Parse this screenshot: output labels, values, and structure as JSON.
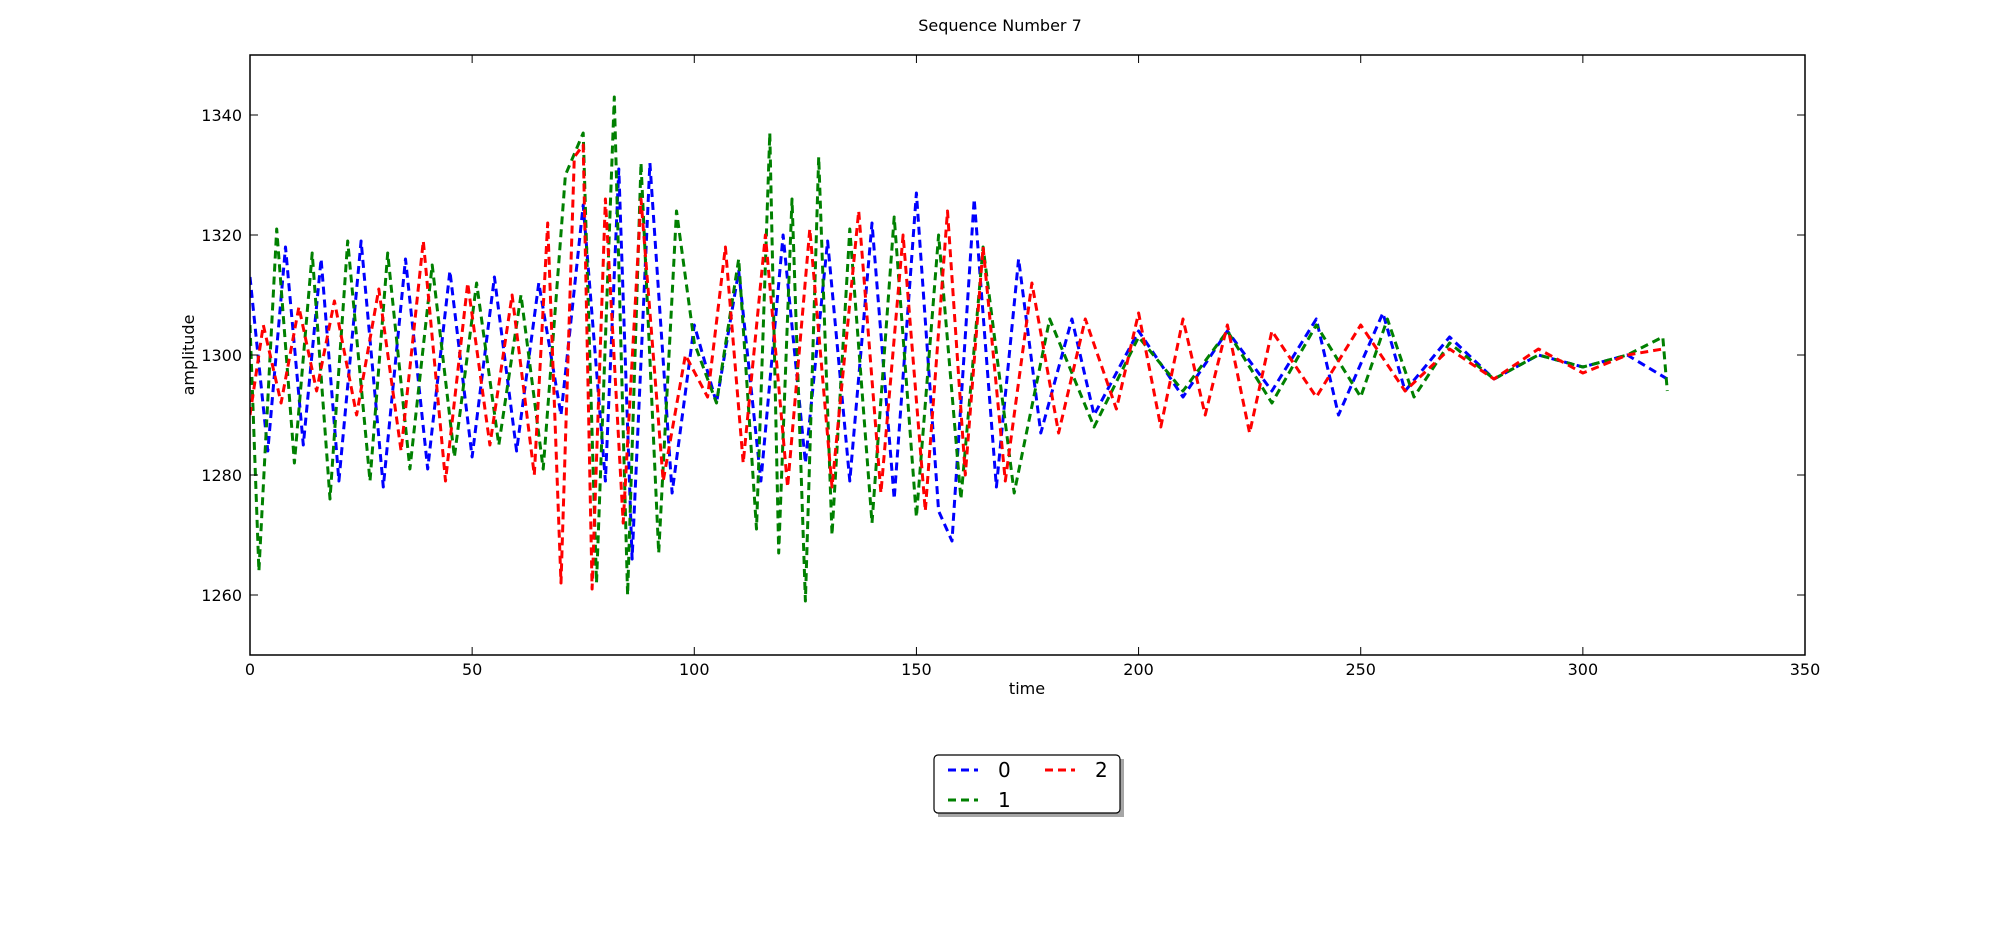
{
  "chart_data": {
    "type": "line",
    "title": "Sequence Number 7",
    "xlabel": "time",
    "ylabel": "amplitude",
    "xlim": [
      0,
      350
    ],
    "ylim": [
      1250,
      1350
    ],
    "xticks": [
      0,
      50,
      100,
      150,
      200,
      250,
      300,
      350
    ],
    "yticks": [
      1260,
      1280,
      1300,
      1320,
      1340
    ],
    "grid": false,
    "line_style": "dashed",
    "legend_placement": "below plot, centered",
    "legend_columns": 2,
    "series": [
      {
        "name": "0",
        "color": "#0000ff",
        "x": [
          0,
          4,
          8,
          12,
          16,
          20,
          25,
          30,
          35,
          40,
          45,
          50,
          55,
          60,
          65,
          70,
          75,
          80,
          83,
          86,
          90,
          95,
          100,
          105,
          110,
          115,
          120,
          125,
          130,
          135,
          140,
          145,
          150,
          155,
          158,
          163,
          168,
          173,
          178,
          185,
          190,
          200,
          210,
          220,
          230,
          240,
          245,
          255,
          260,
          270,
          280,
          290,
          300,
          310,
          319
        ],
        "y": [
          1313,
          1284,
          1318,
          1285,
          1316,
          1279,
          1319,
          1278,
          1316,
          1281,
          1314,
          1283,
          1313,
          1284,
          1312,
          1290,
          1325,
          1279,
          1331,
          1266,
          1332,
          1277,
          1305,
          1292,
          1314,
          1279,
          1320,
          1282,
          1319,
          1279,
          1322,
          1276,
          1327,
          1274,
          1269,
          1326,
          1278,
          1316,
          1287,
          1306,
          1290,
          1304,
          1293,
          1304,
          1294,
          1306,
          1290,
          1307,
          1294,
          1303,
          1296,
          1300,
          1298,
          1300,
          1296
        ]
      },
      {
        "name": "1",
        "color": "#008000",
        "x": [
          0,
          2,
          6,
          10,
          14,
          18,
          22,
          27,
          31,
          36,
          41,
          46,
          51,
          56,
          61,
          66,
          71,
          75,
          78,
          82,
          85,
          88,
          92,
          96,
          100,
          105,
          110,
          114,
          117,
          119,
          122,
          125,
          128,
          131,
          135,
          140,
          145,
          150,
          155,
          160,
          165,
          172,
          180,
          190,
          200,
          210,
          220,
          230,
          240,
          250,
          256,
          262,
          270,
          280,
          290,
          300,
          310,
          318,
          319
        ],
        "y": [
          1305,
          1264,
          1321,
          1282,
          1317,
          1276,
          1319,
          1279,
          1317,
          1281,
          1315,
          1283,
          1312,
          1285,
          1310,
          1281,
          1330,
          1337,
          1262,
          1343,
          1260,
          1332,
          1267,
          1324,
          1302,
          1292,
          1316,
          1271,
          1337,
          1267,
          1326,
          1259,
          1333,
          1270,
          1321,
          1272,
          1323,
          1273,
          1320,
          1276,
          1318,
          1277,
          1306,
          1288,
          1303,
          1294,
          1304,
          1292,
          1305,
          1293,
          1306,
          1293,
          1302,
          1296,
          1300,
          1298,
          1300,
          1303,
          1294
        ]
      },
      {
        "name": "2",
        "color": "#ff0000",
        "x": [
          0,
          3,
          7,
          11,
          15,
          19,
          24,
          29,
          34,
          39,
          44,
          49,
          54,
          59,
          64,
          67,
          70,
          73,
          75,
          77,
          80,
          84,
          88,
          93,
          98,
          103,
          107,
          111,
          116,
          121,
          126,
          131,
          137,
          142,
          147,
          152,
          157,
          161,
          165,
          170,
          176,
          182,
          188,
          195,
          200,
          205,
          210,
          215,
          220,
          225,
          230,
          240,
          250,
          260,
          270,
          280,
          290,
          300,
          310,
          318
        ],
        "y": [
          1290,
          1305,
          1292,
          1308,
          1294,
          1309,
          1290,
          1311,
          1284,
          1319,
          1279,
          1312,
          1285,
          1310,
          1280,
          1322,
          1262,
          1333,
          1335,
          1261,
          1326,
          1272,
          1326,
          1279,
          1300,
          1293,
          1318,
          1282,
          1320,
          1278,
          1321,
          1278,
          1324,
          1277,
          1320,
          1274,
          1324,
          1280,
          1318,
          1279,
          1312,
          1287,
          1306,
          1291,
          1307,
          1288,
          1306,
          1290,
          1305,
          1287,
          1304,
          1293,
          1305,
          1294,
          1301,
          1296,
          1301,
          1297,
          1300,
          1301
        ]
      }
    ]
  }
}
